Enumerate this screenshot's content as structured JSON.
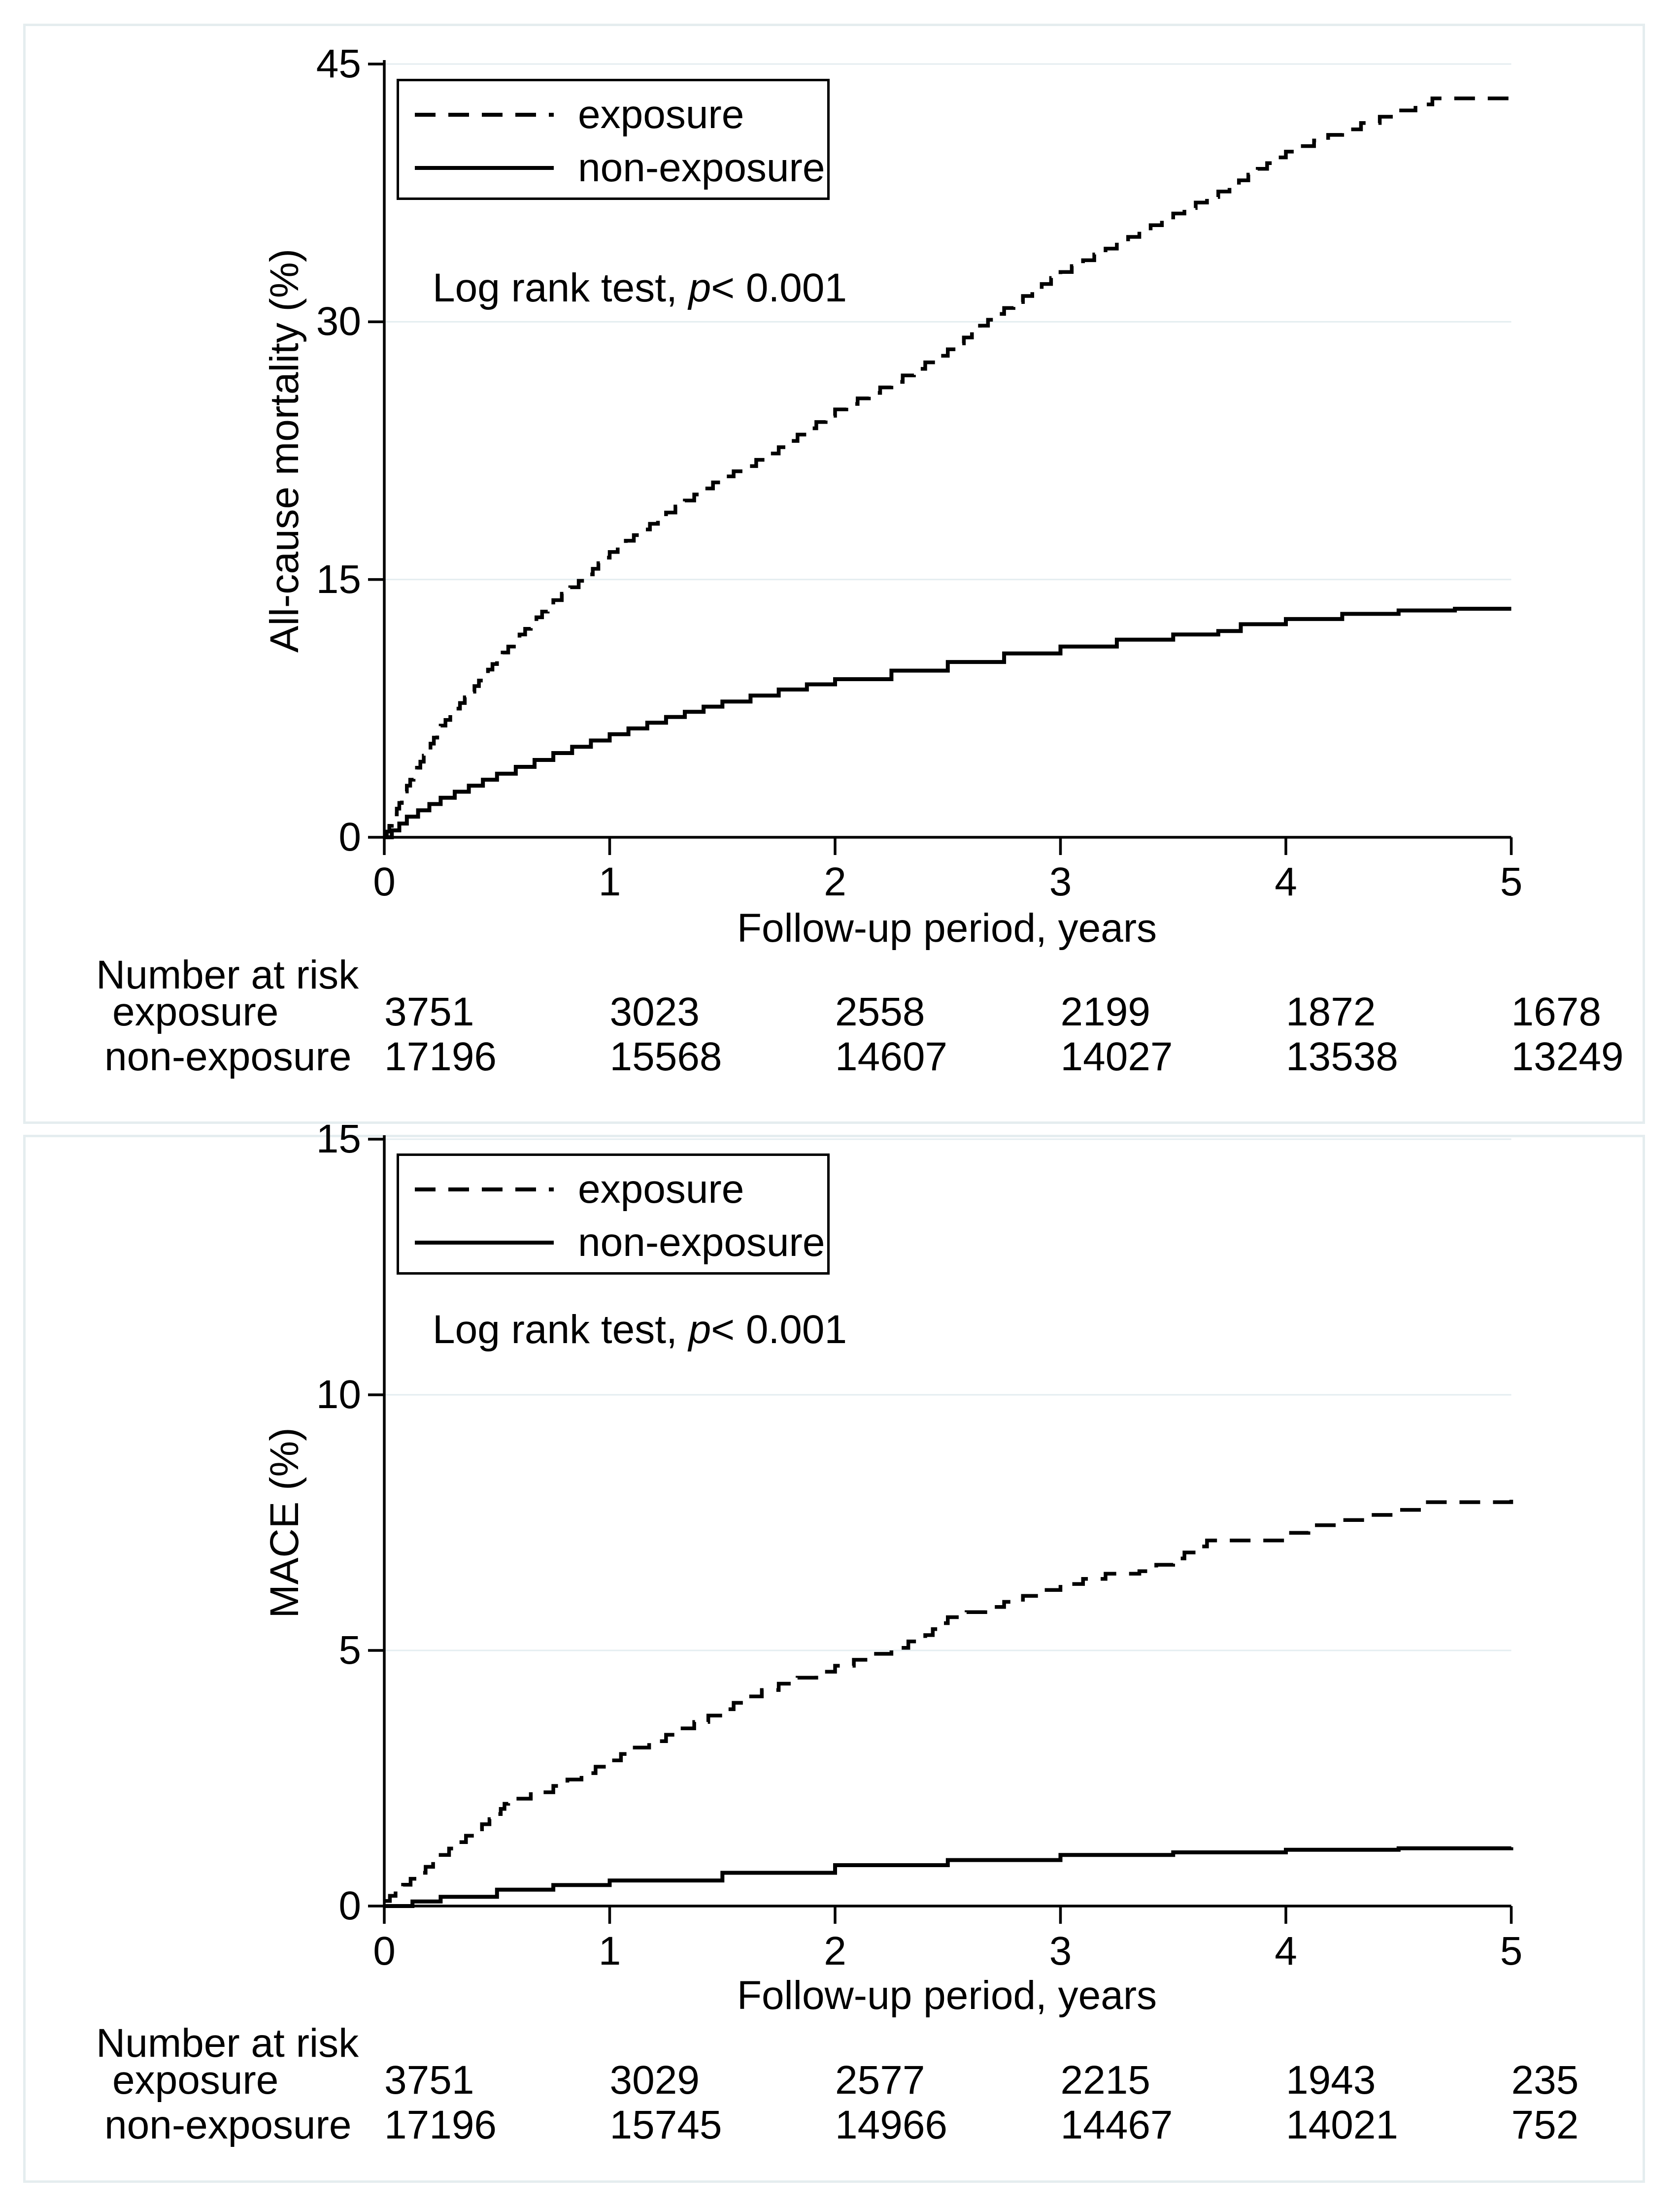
{
  "colors": {
    "curve": "#000000",
    "grid": "#e4edf0",
    "panel_border": "#e5edef",
    "background": "#ffffff"
  },
  "chart_data": [
    {
      "type": "line",
      "subtype": "kaplan-meier-cumulative-incidence",
      "ylabel": "All-cause mortality (%)",
      "xlabel": "Follow-up period, years",
      "ylim": [
        0,
        45
      ],
      "yticks": [
        0,
        15,
        30,
        45
      ],
      "xticks": [
        0,
        1,
        2,
        3,
        4,
        5
      ],
      "grid": "horizontal gridlines at yticks, legend top-left inside plot",
      "annotation": {
        "prefix": "Log rank test, ",
        "p": "p",
        "suffix": "< 0.001"
      },
      "legend": [
        {
          "label": "exposure",
          "style": "dashed"
        },
        {
          "label": "non-exposure",
          "style": "solid"
        }
      ],
      "series": [
        {
          "name": "exposure",
          "style": "dashed",
          "x": [
            0,
            0.1,
            0.25,
            0.4,
            0.5,
            0.6,
            0.75,
            0.9,
            1,
            1.25,
            1.5,
            1.6,
            1.75,
            2,
            2.25,
            2.5,
            2.75,
            3,
            3.25,
            3.5,
            3.75,
            4,
            4.25,
            4.5,
            4.65,
            5
          ],
          "y": [
            0,
            3,
            6.5,
            8.8,
            10.4,
            11.8,
            13.8,
            15.3,
            16.6,
            18.9,
            21,
            21.6,
            22.7,
            24.9,
            26.5,
            28.4,
            30.8,
            32.9,
            34.6,
            36.3,
            37.9,
            39.9,
            41.2,
            42.3,
            43,
            43.2
          ]
        },
        {
          "name": "non-exposure",
          "style": "solid",
          "x": [
            0,
            0.1,
            0.25,
            0.5,
            0.75,
            1,
            1.25,
            1.5,
            1.75,
            2,
            2.25,
            2.5,
            2.75,
            3,
            3.25,
            3.5,
            3.7,
            3.8,
            4,
            4.25,
            4.5,
            4.75,
            5
          ],
          "y": [
            0,
            1.2,
            2.3,
            3.7,
            4.9,
            6,
            7,
            7.9,
            8.6,
            9.2,
            9.7,
            10.2,
            10.7,
            11.1,
            11.5,
            11.8,
            12,
            12.4,
            12.7,
            13,
            13.2,
            13.3,
            13.3
          ]
        }
      ],
      "risk_table": {
        "title": "Number at risk",
        "rows": [
          {
            "label": "exposure",
            "values": [
              3751,
              3023,
              2558,
              2199,
              1872,
              1678
            ]
          },
          {
            "label": "non-exposure",
            "values": [
              17196,
              15568,
              14607,
              14027,
              13538,
              13249
            ]
          }
        ]
      }
    },
    {
      "type": "line",
      "subtype": "kaplan-meier-cumulative-incidence",
      "ylabel": "MACE (%)",
      "xlabel": "Follow-up period, years",
      "ylim": [
        0,
        15
      ],
      "yticks": [
        0,
        5,
        10,
        15
      ],
      "xticks": [
        0,
        1,
        2,
        3,
        4,
        5
      ],
      "grid": "horizontal gridlines at yticks, legend top-left inside plot",
      "annotation": {
        "prefix": "Log rank test, ",
        "p": "p",
        "suffix": "< 0.001"
      },
      "legend": [
        {
          "label": "exposure",
          "style": "dashed"
        },
        {
          "label": "non-exposure",
          "style": "solid"
        }
      ],
      "series": [
        {
          "name": "exposure",
          "style": "dashed",
          "x": [
            0,
            0.05,
            0.25,
            0.4,
            0.5,
            0.55,
            0.75,
            1,
            1.1,
            1.25,
            1.5,
            1.6,
            1.75,
            2,
            2.25,
            2.4,
            2.5,
            2.75,
            3,
            3.2,
            3.35,
            3.5,
            3.65,
            4,
            4.1,
            4.25,
            4.5,
            4.6,
            5
          ],
          "y": [
            0.1,
            0.3,
            1,
            1.5,
            1.8,
            2.1,
            2.35,
            2.85,
            3.1,
            3.35,
            3.85,
            4.1,
            4.35,
            4.7,
            5.05,
            5.3,
            5.65,
            5.95,
            6.3,
            6.5,
            6.55,
            6.8,
            7.15,
            7.3,
            7.45,
            7.55,
            7.75,
            7.9,
            7.95
          ]
        },
        {
          "name": "non-exposure",
          "style": "solid",
          "x": [
            0,
            0.25,
            0.5,
            1,
            1.5,
            2,
            2.5,
            3,
            3.5,
            4,
            4.5,
            5
          ],
          "y": [
            0,
            0.18,
            0.32,
            0.5,
            0.65,
            0.8,
            0.9,
            1,
            1.05,
            1.1,
            1.13,
            1.15
          ]
        }
      ],
      "risk_table": {
        "title": "Number at risk",
        "rows": [
          {
            "label": "exposure",
            "values": [
              3751,
              3029,
              2577,
              2215,
              1943,
              235
            ]
          },
          {
            "label": "non-exposure",
            "values": [
              17196,
              15745,
              14966,
              14467,
              14021,
              752
            ]
          }
        ]
      }
    }
  ]
}
